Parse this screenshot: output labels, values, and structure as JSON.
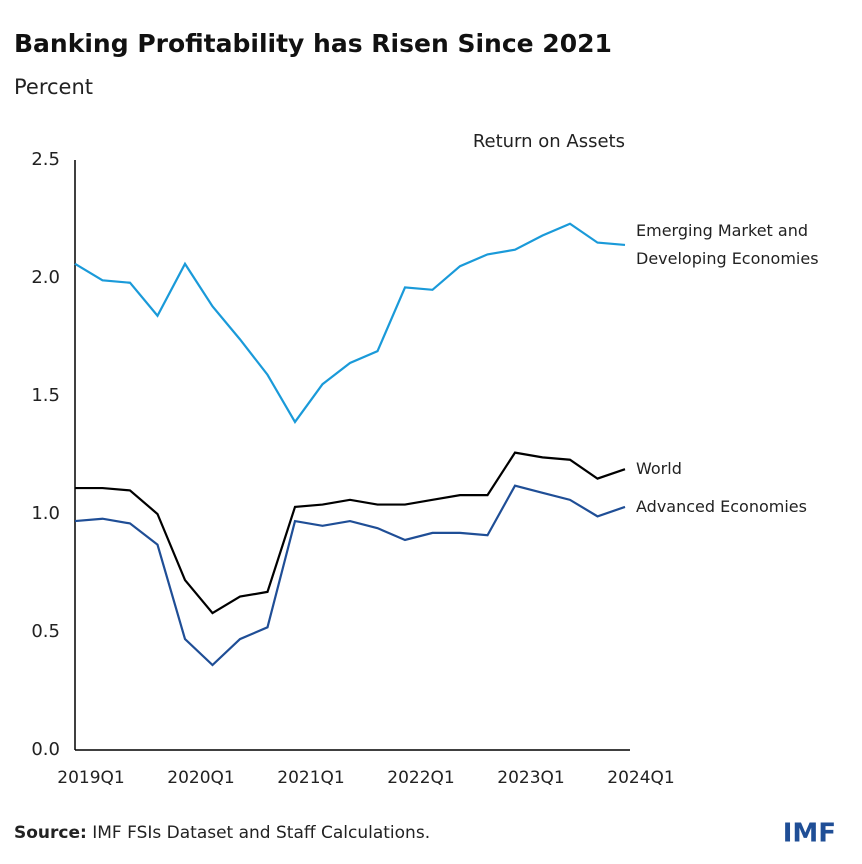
{
  "chart_data": {
    "type": "line",
    "title": "Banking Profitability has Risen Since 2021",
    "subtitle": "Percent",
    "panel_title": "Return on Assets",
    "categories": [
      "2019Q1",
      null,
      null,
      null,
      "2020Q1",
      null,
      null,
      null,
      "2021Q1",
      null,
      null,
      null,
      "2022Q1",
      null,
      null,
      null,
      "2023Q1",
      null,
      null,
      null,
      "2024Q1"
    ],
    "series": [
      {
        "name": "Emerging Market and Developing Economies",
        "color": "#1a9ad9",
        "values": [
          2.06,
          1.99,
          1.98,
          1.84,
          2.06,
          1.88,
          1.74,
          1.59,
          1.39,
          1.55,
          1.64,
          1.69,
          1.96,
          1.95,
          2.05,
          2.1,
          2.12,
          2.18,
          2.23,
          2.15,
          2.14
        ]
      },
      {
        "name": "World",
        "color": "#000000",
        "values": [
          1.11,
          1.11,
          1.1,
          1.0,
          0.72,
          0.58,
          0.65,
          0.67,
          1.03,
          1.04,
          1.06,
          1.04,
          1.04,
          1.06,
          1.08,
          1.08,
          1.26,
          1.24,
          1.23,
          1.15,
          1.19
        ]
      },
      {
        "name": "Advanced Economies",
        "color": "#1f4e96",
        "values": [
          0.97,
          0.98,
          0.96,
          0.87,
          0.47,
          0.36,
          0.47,
          0.52,
          0.97,
          0.95,
          0.97,
          0.94,
          0.89,
          0.92,
          0.92,
          0.91,
          1.12,
          1.09,
          1.06,
          0.99,
          1.03
        ]
      }
    ],
    "ylim": [
      0,
      2.5
    ],
    "yticks": [
      {
        "value": 0,
        "label": "0.0"
      },
      0.5,
      {
        "value": 1,
        "label": "1.0"
      },
      1.5,
      {
        "value": 2,
        "label": "2.0"
      },
      2.5
    ],
    "grid": false,
    "source_label": "Source:",
    "source": "IMF FSIs Dataset and Staff Calculations.",
    "logo": "IMF"
  }
}
